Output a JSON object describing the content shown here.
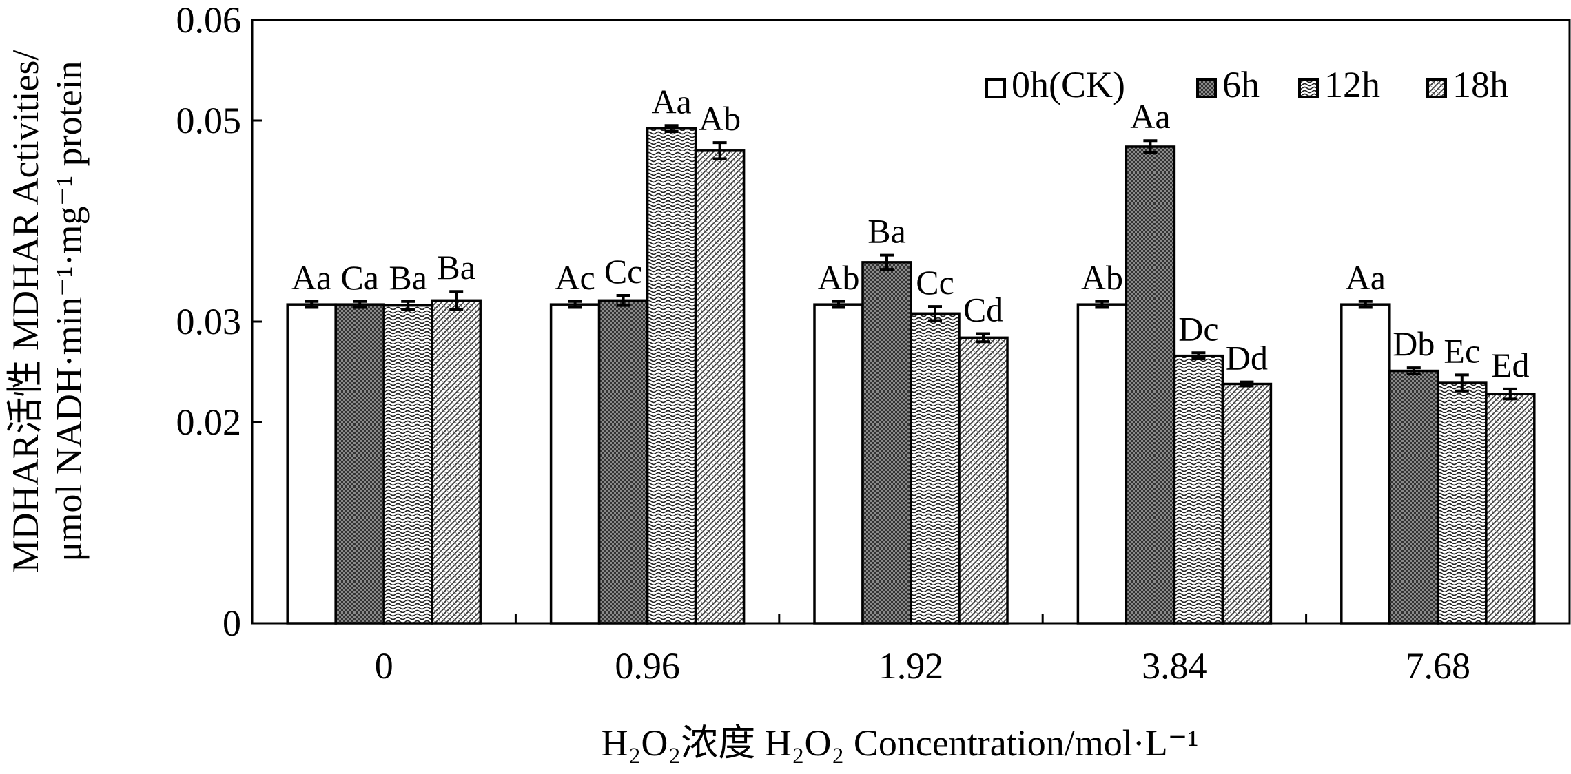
{
  "chart_data": {
    "type": "bar",
    "title": "",
    "xlabel": "H₂O₂浓度 H₂O₂ Concentration/mol·L⁻¹",
    "ylabel_lines": [
      "MDHAR活性 MDHAR Activities/",
      "μmol NADH·min⁻¹·mg⁻¹ protein"
    ],
    "ylim": [
      0,
      0.06
    ],
    "yticks": [
      "0",
      "0.02",
      "0.03",
      "0.05",
      "0.06"
    ],
    "ytick_values": [
      0,
      0.02,
      0.03,
      0.05,
      0.06
    ],
    "categories": [
      "0",
      "0.96",
      "1.92",
      "3.84",
      "7.68"
    ],
    "legend_position": "top-right",
    "grid": false,
    "series": [
      {
        "name": "0h(CK)",
        "pattern": "white",
        "values": [
          0.0317,
          0.0317,
          0.0317,
          0.0317,
          0.0317
        ],
        "errors": [
          0.0003,
          0.0003,
          0.0003,
          0.0003,
          0.0003
        ],
        "labels": [
          "Aa",
          "Ac",
          "Ab",
          "Ab",
          "Aa"
        ]
      },
      {
        "name": "6h",
        "pattern": "dense",
        "values": [
          0.0317,
          0.0321,
          0.0359,
          0.0474,
          0.0251
        ],
        "errors": [
          0.0003,
          0.0005,
          0.0007,
          0.0006,
          0.0003
        ],
        "labels": [
          "Ca",
          "Cc",
          "Ba",
          "Aa",
          "Db"
        ]
      },
      {
        "name": "12h",
        "pattern": "wave",
        "values": [
          0.0316,
          0.0492,
          0.0308,
          0.0266,
          0.0239
        ],
        "errors": [
          0.0004,
          0.0003,
          0.0007,
          0.0003,
          0.0008
        ],
        "labels": [
          "Ba",
          "Aa",
          "Cc",
          "Dc",
          "Ec"
        ]
      },
      {
        "name": "18h",
        "pattern": "diag",
        "values": [
          0.0321,
          0.047,
          0.0284,
          0.0238,
          0.0228
        ],
        "errors": [
          0.0009,
          0.0008,
          0.0004,
          0.0002,
          0.0005
        ],
        "labels": [
          "Ba",
          "Ab",
          "Cd",
          "Dd",
          "Ed"
        ]
      }
    ]
  }
}
